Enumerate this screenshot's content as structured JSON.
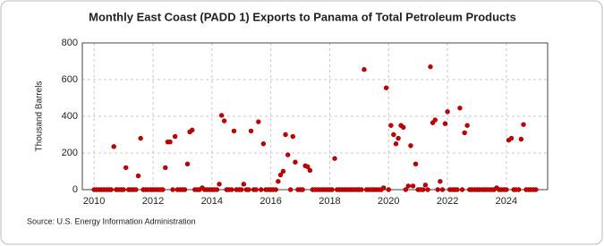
{
  "chart_data": {
    "type": "scatter",
    "title": "Monthly East Coast (PADD 1) Exports to Panama of Total Petroleum Products",
    "y_label": "Thousand Barrels",
    "source": "Source: U.S. Energy Information Administration",
    "color": "#cc0000",
    "grid": true,
    "xlim": [
      2009.6,
      2025.4
    ],
    "xticks": [
      2010,
      2012,
      2014,
      2016,
      2018,
      2020,
      2022,
      2024
    ],
    "ylim": [
      0,
      800
    ],
    "yticks": [
      0,
      200,
      400,
      600,
      800
    ],
    "x": [
      2010,
      2010.08,
      2010.17,
      2010.25,
      2010.33,
      2010.42,
      2010.5,
      2010.58,
      2010.67,
      2010.75,
      2010.83,
      2010.92,
      2011,
      2011.08,
      2011.17,
      2011.25,
      2011.33,
      2011.42,
      2011.5,
      2011.58,
      2011.67,
      2011.75,
      2011.83,
      2011.92,
      2012,
      2012.08,
      2012.17,
      2012.25,
      2012.33,
      2012.42,
      2012.5,
      2012.58,
      2012.67,
      2012.75,
      2012.83,
      2012.92,
      2013,
      2013.08,
      2013.17,
      2013.25,
      2013.33,
      2013.42,
      2013.5,
      2013.58,
      2013.67,
      2013.75,
      2013.83,
      2013.92,
      2014,
      2014.08,
      2014.17,
      2014.25,
      2014.33,
      2014.42,
      2014.5,
      2014.58,
      2014.67,
      2014.75,
      2014.83,
      2014.92,
      2015,
      2015.08,
      2015.17,
      2015.25,
      2015.33,
      2015.42,
      2015.5,
      2015.58,
      2015.67,
      2015.75,
      2015.83,
      2015.92,
      2016,
      2016.08,
      2016.17,
      2016.25,
      2016.33,
      2016.42,
      2016.5,
      2016.58,
      2016.67,
      2016.75,
      2016.83,
      2016.92,
      2017,
      2017.08,
      2017.17,
      2017.25,
      2017.33,
      2017.42,
      2017.5,
      2017.58,
      2017.67,
      2017.75,
      2017.83,
      2017.92,
      2018,
      2018.08,
      2018.17,
      2018.25,
      2018.33,
      2018.42,
      2018.5,
      2018.58,
      2018.67,
      2018.75,
      2018.83,
      2018.92,
      2019,
      2019.08,
      2019.17,
      2019.25,
      2019.33,
      2019.42,
      2019.5,
      2019.58,
      2019.67,
      2019.75,
      2019.83,
      2019.92,
      2020,
      2020.08,
      2020.17,
      2020.25,
      2020.33,
      2020.42,
      2020.5,
      2020.58,
      2020.67,
      2020.75,
      2020.83,
      2020.92,
      2021,
      2021.08,
      2021.17,
      2021.25,
      2021.33,
      2021.42,
      2021.5,
      2021.58,
      2021.67,
      2021.75,
      2021.83,
      2021.92,
      2022,
      2022.08,
      2022.17,
      2022.25,
      2022.33,
      2022.42,
      2022.5,
      2022.58,
      2022.67,
      2022.75,
      2022.83,
      2022.92,
      2023,
      2023.08,
      2023.17,
      2023.25,
      2023.33,
      2023.42,
      2023.5,
      2023.58,
      2023.67,
      2023.75,
      2023.83,
      2023.92,
      2024,
      2024.08,
      2024.17,
      2024.25,
      2024.33,
      2024.42,
      2024.5,
      2024.58,
      2024.67,
      2024.75,
      2024.83,
      2024.92,
      2025
    ],
    "values": [
      0,
      0,
      0,
      0,
      0,
      0,
      0,
      0,
      235,
      0,
      0,
      0,
      0,
      120,
      0,
      0,
      0,
      0,
      75,
      280,
      0,
      0,
      0,
      0,
      0,
      0,
      0,
      0,
      0,
      120,
      260,
      260,
      0,
      290,
      0,
      0,
      0,
      0,
      140,
      315,
      325,
      0,
      0,
      0,
      10,
      0,
      0,
      0,
      0,
      0,
      0,
      30,
      405,
      375,
      0,
      0,
      0,
      320,
      0,
      0,
      0,
      30,
      0,
      0,
      320,
      0,
      0,
      370,
      0,
      250,
      0,
      0,
      0,
      0,
      0,
      45,
      80,
      100,
      300,
      190,
      0,
      290,
      150,
      0,
      0,
      0,
      130,
      125,
      105,
      0,
      0,
      0,
      0,
      0,
      0,
      0,
      0,
      0,
      170,
      0,
      0,
      0,
      0,
      0,
      0,
      0,
      0,
      0,
      0,
      0,
      655,
      0,
      0,
      0,
      0,
      0,
      0,
      0,
      10,
      555,
      0,
      350,
      300,
      250,
      280,
      350,
      340,
      0,
      20,
      240,
      20,
      140,
      0,
      0,
      0,
      25,
      0,
      670,
      365,
      380,
      0,
      45,
      0,
      360,
      425,
      0,
      0,
      0,
      0,
      445,
      0,
      310,
      350,
      0,
      0,
      0,
      0,
      0,
      0,
      0,
      0,
      0,
      0,
      0,
      10,
      0,
      0,
      0,
      0,
      270,
      280,
      0,
      0,
      0,
      275,
      355,
      0,
      0,
      0,
      0,
      0
    ]
  }
}
